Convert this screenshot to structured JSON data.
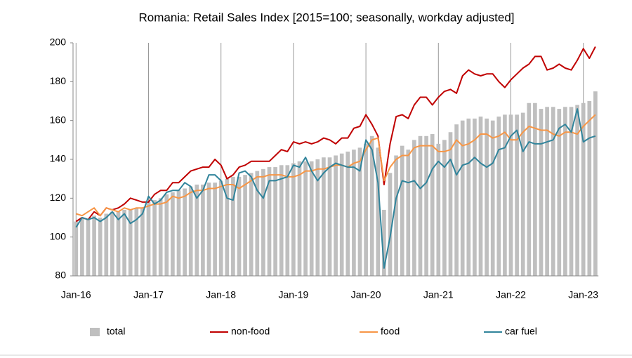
{
  "chart_data": {
    "type": "bar",
    "title": "Romania: Retail Sales Index [2015=100; seasonally, workday adjusted]",
    "categories": [
      "Jan-16",
      null,
      null,
      null,
      null,
      null,
      null,
      null,
      null,
      null,
      null,
      null,
      "Jan-17",
      null,
      null,
      null,
      null,
      null,
      null,
      null,
      null,
      null,
      null,
      null,
      "Jan-18",
      null,
      null,
      null,
      null,
      null,
      null,
      null,
      null,
      null,
      null,
      null,
      "Jan-19",
      null,
      null,
      null,
      null,
      null,
      null,
      null,
      null,
      null,
      null,
      null,
      "Jan-20",
      null,
      null,
      null,
      null,
      null,
      null,
      null,
      null,
      null,
      null,
      null,
      "Jan-21",
      null,
      null,
      null,
      null,
      null,
      null,
      null,
      null,
      null,
      null,
      null,
      "Jan-22",
      null,
      null,
      null,
      null,
      null,
      null,
      null,
      null,
      null,
      null,
      null,
      "Jan-23",
      null,
      null
    ],
    "series": [
      {
        "name": "total",
        "type": "bar",
        "color": "#bfbfbf",
        "values": [
          108,
          110,
          109,
          111,
          110,
          112,
          113,
          113,
          114,
          114,
          115,
          115,
          118,
          119,
          120,
          122,
          123,
          124,
          125,
          126,
          127,
          127,
          128,
          128,
          129,
          130,
          131,
          131,
          132,
          133,
          134,
          135,
          136,
          136,
          137,
          137,
          138,
          139,
          139,
          139,
          140,
          141,
          141,
          142,
          143,
          144,
          145,
          146,
          148,
          152,
          146,
          114,
          133,
          142,
          147,
          145,
          150,
          152,
          152,
          153,
          148,
          150,
          154,
          158,
          160,
          161,
          161,
          162,
          161,
          160,
          162,
          163,
          163,
          163,
          164,
          169,
          169,
          166,
          167,
          167,
          166,
          167,
          167,
          168,
          169,
          170,
          175
        ]
      },
      {
        "name": "non-food",
        "type": "line",
        "color": "#c00000",
        "values": [
          108,
          110,
          109,
          113,
          111,
          115,
          114,
          115,
          117,
          120,
          119,
          118,
          118,
          122,
          124,
          124,
          128,
          128,
          131,
          134,
          135,
          136,
          136,
          140,
          137,
          130,
          132,
          136,
          137,
          139,
          139,
          139,
          139,
          142,
          145,
          144,
          149,
          148,
          149,
          148,
          149,
          151,
          150,
          148,
          151,
          151,
          156,
          157,
          163,
          158,
          152,
          127,
          148,
          162,
          163,
          161,
          168,
          172,
          172,
          168,
          172,
          175,
          176,
          174,
          183,
          186,
          184,
          183,
          184,
          184,
          180,
          177,
          181,
          184,
          187,
          189,
          193,
          193,
          186,
          187,
          189,
          187,
          186,
          191,
          197,
          192,
          198
        ]
      },
      {
        "name": "food",
        "type": "line",
        "color": "#f79646",
        "values": [
          112,
          111,
          113,
          115,
          111,
          115,
          114,
          113,
          115,
          114,
          115,
          115,
          116,
          117,
          117,
          118,
          121,
          120,
          121,
          123,
          124,
          124,
          125,
          125,
          126,
          127,
          127,
          125,
          127,
          129,
          131,
          131,
          132,
          132,
          132,
          131,
          131,
          132,
          134,
          134,
          135,
          135,
          136,
          137,
          137,
          136,
          138,
          139,
          145,
          150,
          151,
          129,
          136,
          140,
          142,
          142,
          146,
          147,
          147,
          147,
          144,
          144,
          145,
          150,
          147,
          148,
          150,
          153,
          153,
          151,
          152,
          154,
          150,
          150,
          154,
          157,
          156,
          155,
          155,
          153,
          152,
          154,
          154,
          153,
          157,
          160,
          163
        ]
      },
      {
        "name": "car fuel",
        "type": "line",
        "color": "#31849b",
        "values": [
          105,
          110,
          109,
          110,
          108,
          110,
          113,
          109,
          112,
          107,
          109,
          112,
          121,
          117,
          119,
          123,
          124,
          124,
          128,
          126,
          120,
          124,
          132,
          132,
          129,
          120,
          119,
          133,
          134,
          131,
          124,
          120,
          129,
          129,
          130,
          131,
          137,
          136,
          141,
          134,
          129,
          133,
          136,
          138,
          137,
          136,
          136,
          134,
          150,
          145,
          128,
          84,
          100,
          120,
          129,
          128,
          129,
          125,
          128,
          135,
          139,
          136,
          140,
          132,
          137,
          138,
          141,
          138,
          136,
          138,
          145,
          146,
          152,
          155,
          144,
          149,
          148,
          148,
          149,
          150,
          156,
          158,
          154,
          166,
          149,
          151,
          152
        ]
      }
    ],
    "ylim": [
      80,
      200
    ],
    "yticks": [
      80,
      100,
      120,
      140,
      160,
      180,
      200
    ],
    "xgrid": true,
    "legend": "bottom"
  }
}
